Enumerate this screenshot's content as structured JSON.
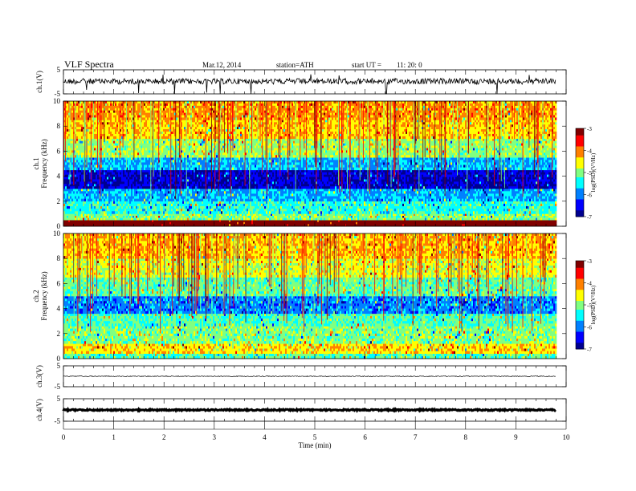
{
  "header": {
    "title": "VLF  Spectra",
    "date": "Mar.12, 2014",
    "station": "station=ATH",
    "start_label": "start  UT  =",
    "start_time": "11: 20: 0"
  },
  "colors": {
    "jet": [
      "#00008f",
      "#0000ff",
      "#0080ff",
      "#00ffff",
      "#80ff80",
      "#ffff00",
      "#ff8000",
      "#ff0000",
      "#800000"
    ]
  },
  "chart_data": [
    {
      "type": "line",
      "name": "ch1",
      "ylabel": "ch.1(V)",
      "ylim": [
        -5,
        5
      ],
      "yticks": [
        -5,
        5
      ],
      "xlim": [
        0,
        10
      ],
      "trace_level": 0.2,
      "trace_spread": 0.6,
      "data_end": 9.8
    },
    {
      "type": "heatmap",
      "name": "ch1-spectrogram",
      "ylabel": "ch.1",
      "ylabel2": "Frequency  (kHz)",
      "ylim": [
        0,
        10
      ],
      "yticks": [
        0,
        2,
        4,
        6,
        8,
        10
      ],
      "xlim": [
        0,
        10
      ],
      "data_end": 9.8,
      "colorbar": {
        "label": "log(PSD)(V²/Hz)",
        "range": [
          -7,
          -3
        ],
        "ticks": [
          -7,
          -6,
          -5,
          -4,
          -3
        ]
      },
      "bands": [
        {
          "fmin": 0.0,
          "fmax": 0.5,
          "level": 8.3
        },
        {
          "fmin": 0.5,
          "fmax": 1.0,
          "level": 4.0
        },
        {
          "fmin": 1.0,
          "fmax": 2.0,
          "level": 3.2
        },
        {
          "fmin": 2.0,
          "fmax": 3.0,
          "level": 2.4
        },
        {
          "fmin": 3.0,
          "fmax": 4.5,
          "level": 0.5
        },
        {
          "fmin": 4.5,
          "fmax": 5.5,
          "level": 2.4
        },
        {
          "fmin": 5.5,
          "fmax": 7.0,
          "level": 4.2
        },
        {
          "fmin": 7.0,
          "fmax": 8.5,
          "level": 5.3
        },
        {
          "fmin": 8.5,
          "fmax": 10.0,
          "level": 5.8
        }
      ]
    },
    {
      "type": "heatmap",
      "name": "ch2-spectrogram",
      "ylabel": "ch.2",
      "ylabel2": "Frequency  (kHz)",
      "ylim": [
        0,
        10
      ],
      "yticks": [
        0,
        2,
        4,
        6,
        8,
        10
      ],
      "xlim": [
        0,
        10
      ],
      "data_end": 9.8,
      "colorbar": {
        "label": "log(PSD)(V²/Hz)",
        "range": [
          -7,
          -3
        ],
        "ticks": [
          -7,
          -6,
          -5,
          -4,
          -3
        ]
      },
      "bands": [
        {
          "fmin": 0.0,
          "fmax": 0.4,
          "level": 3.6
        },
        {
          "fmin": 0.4,
          "fmax": 1.2,
          "level": 5.2
        },
        {
          "fmin": 1.2,
          "fmax": 2.6,
          "level": 4.0
        },
        {
          "fmin": 2.6,
          "fmax": 3.6,
          "level": 3.6
        },
        {
          "fmin": 3.6,
          "fmax": 5.0,
          "level": 2.0
        },
        {
          "fmin": 5.0,
          "fmax": 6.5,
          "level": 3.8
        },
        {
          "fmin": 6.5,
          "fmax": 8.0,
          "level": 4.8
        },
        {
          "fmin": 8.0,
          "fmax": 10.0,
          "level": 5.5
        }
      ]
    },
    {
      "type": "line",
      "name": "ch3",
      "ylabel": "ch.3(V)",
      "ylim": [
        -5,
        5
      ],
      "yticks": [
        -5,
        5
      ],
      "xlim": [
        0,
        10
      ],
      "trace_level": 0.0,
      "trace_spread": 0.1,
      "data_end": 9.8
    },
    {
      "type": "line",
      "name": "ch4",
      "ylabel": "ch.4(V)",
      "ylim": [
        -5,
        5
      ],
      "yticks": [
        -5,
        5
      ],
      "xlim": [
        0,
        10
      ],
      "trace_level": 0.0,
      "trace_spread": 0.15,
      "data_end": 9.8
    }
  ],
  "x_axis": {
    "label": "Time  (min)",
    "ticks": [
      0,
      1,
      2,
      3,
      4,
      5,
      6,
      7,
      8,
      9,
      10
    ]
  }
}
